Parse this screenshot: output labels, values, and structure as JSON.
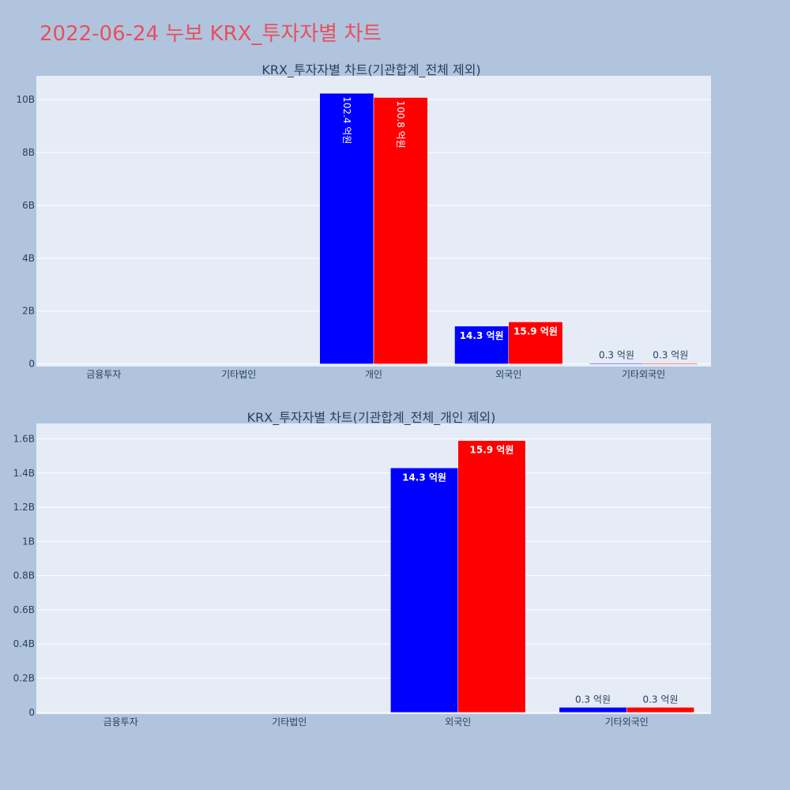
{
  "page_title": "2022-06-24 누보 KRX_투자자별 차트",
  "colors": {
    "background": "#b0c4de",
    "plot_bg": "#e5ecf6",
    "title": "#e8505b",
    "text": "#2a3f5f",
    "series_a": "#0000ff",
    "series_b": "#ff0000"
  },
  "chart_data": [
    {
      "type": "bar",
      "title": "KRX_투자자별 차트(기관합계_전체 제외)",
      "categories": [
        "금융투자",
        "기타법인",
        "개인",
        "외국인",
        "기타외국인"
      ],
      "series": [
        {
          "values": [
            0,
            0,
            10240000000,
            1430000000,
            30000000
          ],
          "labels": [
            "",
            "",
            "102.4 억원",
            "14.3 억원",
            "0.3 억원"
          ],
          "color": "#0000ff"
        },
        {
          "values": [
            0,
            0,
            10080000000,
            1590000000,
            30000000
          ],
          "labels": [
            "",
            "",
            "100.8 억원",
            "15.9 억원",
            "0.3 억원"
          ],
          "color": "#ff0000"
        }
      ],
      "yticks": [
        0,
        2000000000,
        4000000000,
        6000000000,
        8000000000,
        10000000000
      ],
      "ytick_labels": [
        "0",
        "2B",
        "4B",
        "6B",
        "8B",
        "10B"
      ],
      "ylim": [
        -100000000,
        10900000000
      ],
      "grid": true
    },
    {
      "type": "bar",
      "title": "KRX_투자자별 차트(기관합계_전체_개인 제외)",
      "categories": [
        "금융투자",
        "기타법인",
        "외국인",
        "기타외국인"
      ],
      "series": [
        {
          "values": [
            0,
            0,
            1430000000,
            30000000
          ],
          "labels": [
            "",
            "",
            "14.3 억원",
            "0.3 억원"
          ],
          "color": "#0000ff"
        },
        {
          "values": [
            0,
            0,
            1590000000,
            30000000
          ],
          "labels": [
            "",
            "",
            "15.9 억원",
            "0.3 억원"
          ],
          "color": "#ff0000"
        }
      ],
      "yticks": [
        0,
        200000000,
        400000000,
        600000000,
        800000000,
        1000000000,
        1200000000,
        1400000000,
        1600000000
      ],
      "ytick_labels": [
        "0",
        "0.2B",
        "0.4B",
        "0.6B",
        "0.8B",
        "1B",
        "1.2B",
        "1.4B",
        "1.6B"
      ],
      "ylim": [
        -10000000,
        1690000000
      ],
      "grid": true
    }
  ]
}
